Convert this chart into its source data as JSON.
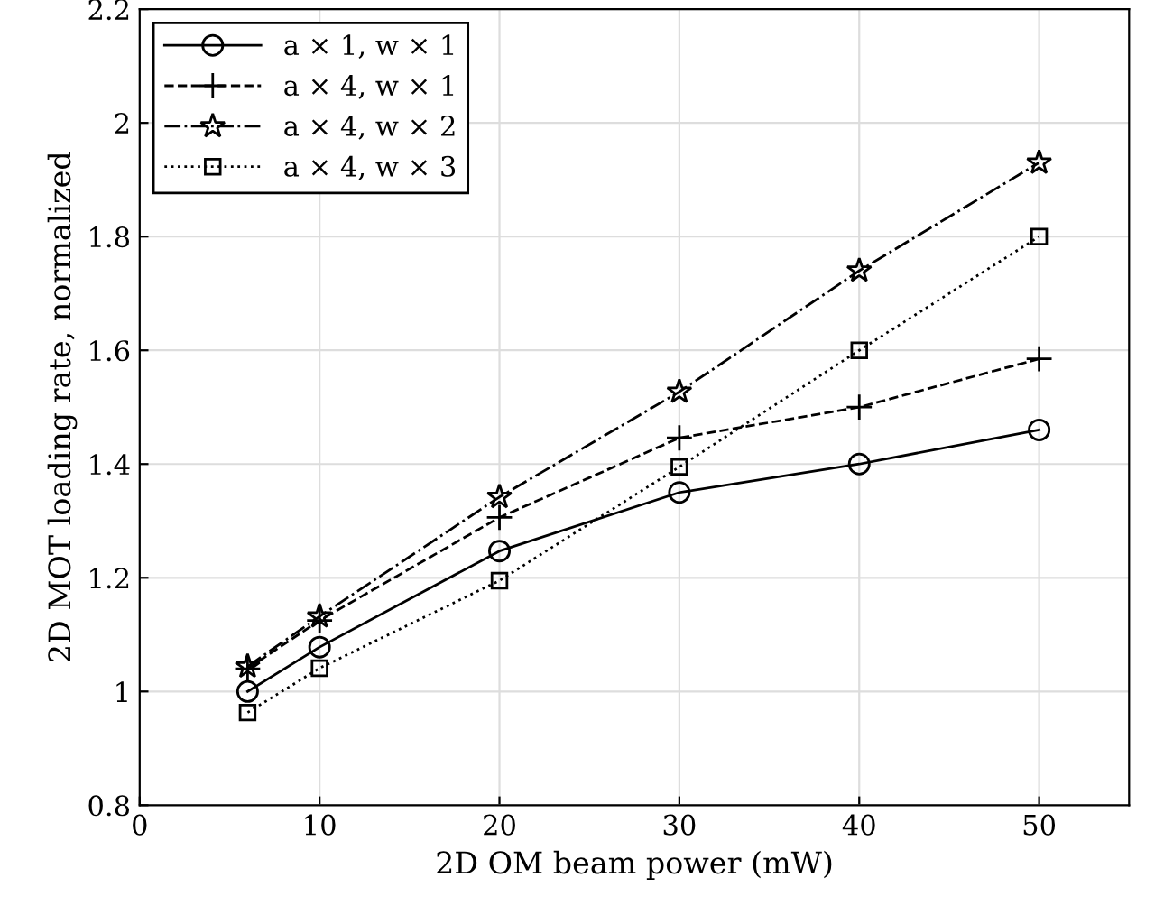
{
  "chart_data": {
    "type": "line",
    "xlabel": "2D OM beam power (mW)",
    "ylabel": "2D MOT loading rate, normalized",
    "x": [
      6,
      10,
      20,
      30,
      40,
      50
    ],
    "series": [
      {
        "name": "a × 1, w × 1",
        "color": "#000000",
        "marker": "circle",
        "line_style": "solid",
        "values": [
          1.0,
          1.078,
          1.247,
          1.35,
          1.4,
          1.46
        ]
      },
      {
        "name": "a × 4, w × 1",
        "color": "#000000",
        "marker": "plus",
        "line_style": "dashed",
        "values": [
          1.04,
          1.125,
          1.306,
          1.446,
          1.5,
          1.585
        ]
      },
      {
        "name": "a × 4, w × 2",
        "color": "#000000",
        "marker": "star",
        "line_style": "dashdot",
        "values": [
          1.044,
          1.132,
          1.342,
          1.527,
          1.74,
          1.93
        ]
      },
      {
        "name": "a × 4, w × 3",
        "color": "#000000",
        "marker": "square",
        "line_style": "dotted",
        "values": [
          0.963,
          1.041,
          1.195,
          1.395,
          1.6,
          1.8
        ]
      }
    ],
    "xlim": [
      0,
      55
    ],
    "xticks": [
      0,
      10,
      20,
      30,
      40,
      50
    ],
    "ylim": [
      0.8,
      2.2
    ],
    "yticks": [
      0.8,
      1,
      1.2,
      1.4,
      1.6,
      1.8,
      2,
      2.2
    ],
    "grid": true,
    "legend": "top left"
  }
}
